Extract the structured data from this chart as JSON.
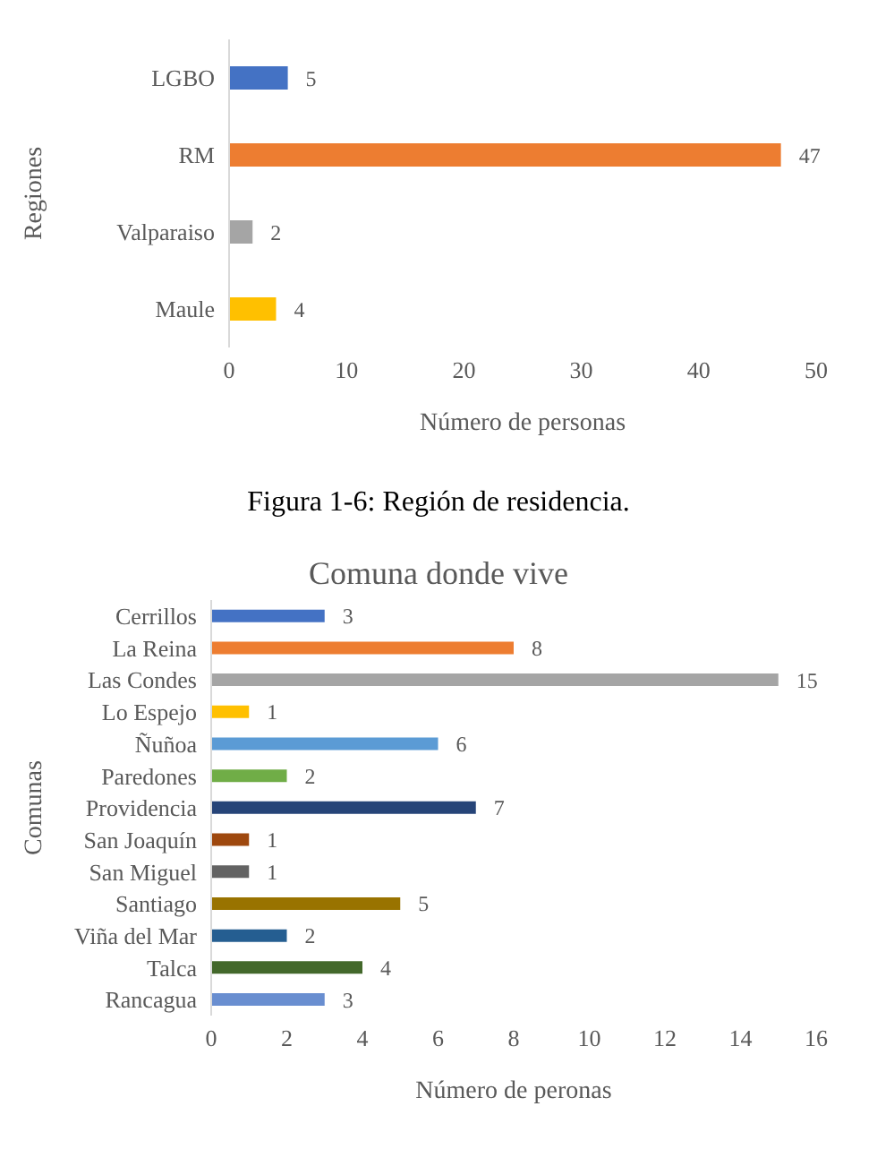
{
  "chart_data": [
    {
      "type": "bar",
      "orientation": "horizontal",
      "categories": [
        "LGBO",
        "RM",
        "Valparaiso",
        "Maule"
      ],
      "values": [
        5,
        47,
        2,
        4
      ],
      "colors": [
        "#4472c4",
        "#ed7d31",
        "#a5a5a5",
        "#ffc000"
      ],
      "xlim": [
        0,
        50
      ],
      "xticks": [
        0,
        10,
        20,
        30,
        40,
        50
      ],
      "xlabel": "Número de personas",
      "ylabel": "Regiones",
      "data_labels": true,
      "grid": false,
      "annotations": [
        "Figura 1-6: Región de residencia."
      ]
    },
    {
      "type": "bar",
      "orientation": "horizontal",
      "title": "Comuna donde vive",
      "categories": [
        "Cerrillos",
        "La Reina",
        "Las Condes",
        "Lo Espejo",
        "Ñuñoa",
        "Paredones",
        "Providencia",
        "San Joaquín",
        "San Miguel",
        "Santiago",
        "Viña del Mar",
        "Talca",
        "Rancagua"
      ],
      "values": [
        3,
        8,
        15,
        1,
        6,
        2,
        7,
        1,
        1,
        5,
        2,
        4,
        3
      ],
      "colors": [
        "#4472c4",
        "#ed7d31",
        "#a5a5a5",
        "#ffc000",
        "#5b9bd5",
        "#70ad47",
        "#264478",
        "#9e480e",
        "#636363",
        "#997300",
        "#255e91",
        "#43682b",
        "#698ed0"
      ],
      "xlim": [
        0,
        16
      ],
      "xticks": [
        0,
        2,
        4,
        6,
        8,
        10,
        12,
        14,
        16
      ],
      "xlabel": "Número de peronas",
      "ylabel": "Comunas",
      "data_labels": true,
      "grid": false
    }
  ]
}
